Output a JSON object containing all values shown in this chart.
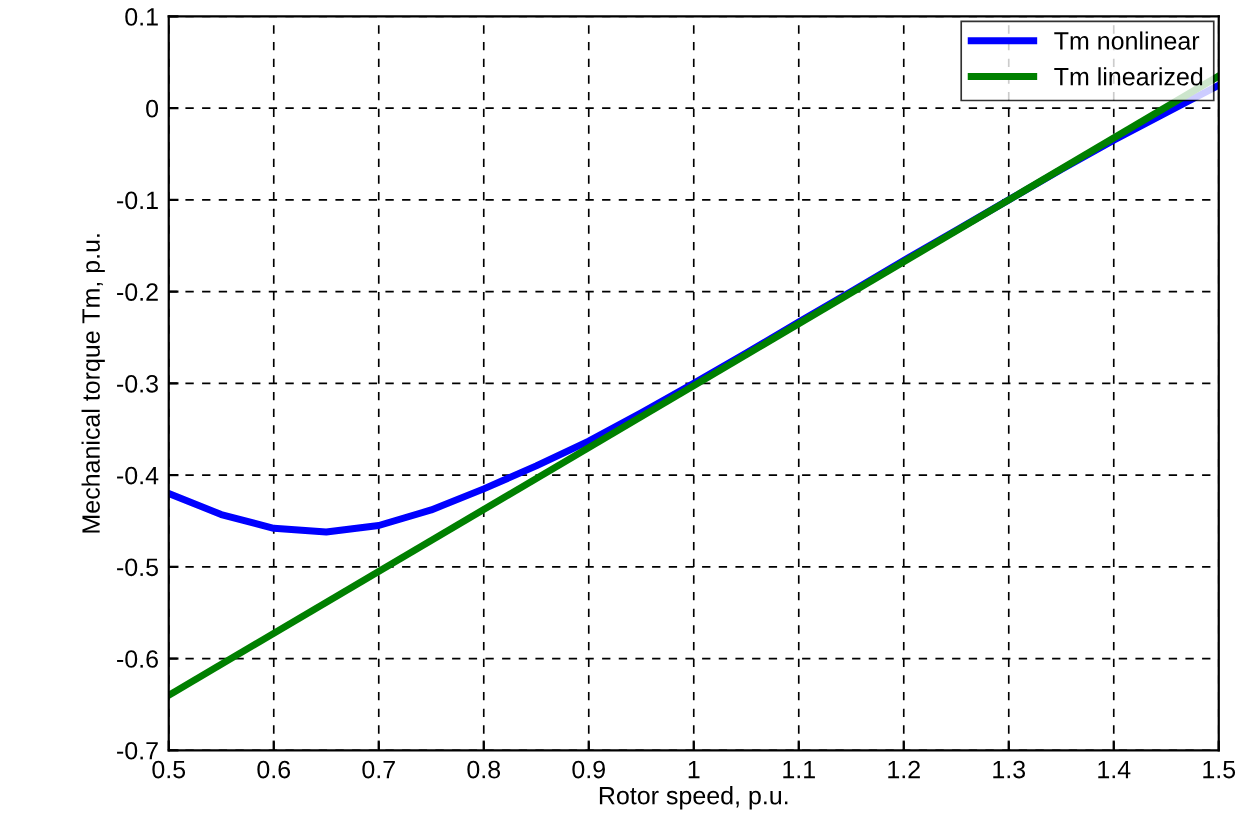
{
  "chart_data": {
    "type": "line",
    "xlabel": "Rotor speed, p.u.",
    "ylabel": "Mechanical torque Tm, p.u.",
    "xlim": [
      0.5,
      1.5
    ],
    "ylim": [
      -0.7,
      0.1
    ],
    "xticks": [
      0.5,
      0.6,
      0.7,
      0.8,
      0.9,
      1,
      1.1,
      1.2,
      1.3,
      1.4,
      1.5
    ],
    "yticks": [
      -0.7,
      -0.6,
      -0.5,
      -0.4,
      -0.3,
      -0.2,
      -0.1,
      0,
      0.1
    ],
    "grid": true,
    "legend": "top right",
    "line_style": "solid",
    "marker": "none",
    "series": [
      {
        "name": "Tm nonlinear",
        "color": "#0000ff",
        "x": [
          0.5,
          0.55,
          0.6,
          0.65,
          0.7,
          0.75,
          0.8,
          0.85,
          0.9,
          0.95,
          1.0,
          1.05,
          1.1,
          1.15,
          1.2,
          1.25,
          1.3,
          1.35,
          1.4,
          1.45,
          1.5
        ],
        "values": [
          -0.42,
          -0.443,
          -0.458,
          -0.462,
          -0.455,
          -0.438,
          -0.415,
          -0.39,
          -0.363,
          -0.332,
          -0.3,
          -0.267,
          -0.233,
          -0.2,
          -0.166,
          -0.133,
          -0.1,
          -0.067,
          -0.035,
          -0.005,
          0.025
        ]
      },
      {
        "name": "Tm linearized",
        "color": "#008000",
        "x": [
          0.5,
          1.5
        ],
        "values": [
          -0.64,
          0.035
        ]
      }
    ]
  }
}
